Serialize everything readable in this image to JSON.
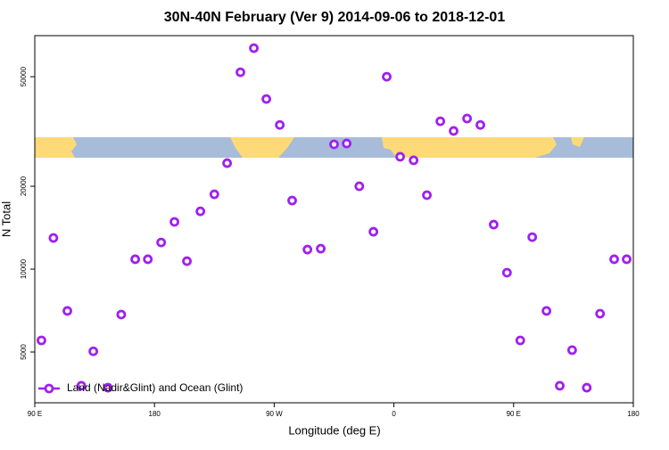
{
  "chart_data": {
    "type": "scatter",
    "title": "30N-40N February (Ver 9)   2014-09-06 to 2018-12-01",
    "x_label": "Longitude (deg E)",
    "y_label": "N Total",
    "xlim": [
      -270,
      180
    ],
    "ylim": [
      3270,
      70500
    ],
    "yscale": "log",
    "xticks": [
      {
        "value": -270,
        "label": "90 E"
      },
      {
        "value": -180,
        "label": "180"
      },
      {
        "value": -90,
        "label": "90 W"
      },
      0,
      {
        "value": 90,
        "label": "90 E"
      },
      180
    ],
    "yticks": [
      5000,
      10000,
      20000,
      50000
    ],
    "legend": "bottom-left",
    "series": [
      {
        "name": "Land (Nadir&Glint) and Ocean (Glint)",
        "color": "#a020f0",
        "x": [
          -265,
          -256,
          -245.5,
          -235,
          -226,
          -215,
          -205,
          -194.5,
          -185,
          -175,
          -165,
          -155.6,
          -145.5,
          -135,
          -125.4,
          -115.4,
          -105.3,
          -95.9,
          -85.8,
          -76.5,
          -65,
          -55,
          -45,
          -35.5,
          -26,
          -15.4,
          -5.4,
          4.7,
          14.8,
          24.8,
          34.9,
          44.9,
          55,
          65,
          75,
          85,
          95,
          104,
          114.7,
          124.7,
          134,
          145,
          155,
          165.6,
          175
        ],
        "values": [
          5510,
          12980,
          7050,
          3770,
          5030,
          3710,
          6840,
          10860,
          10860,
          12500,
          14850,
          10690,
          16220,
          18700,
          24270,
          51900,
          63500,
          41500,
          33400,
          17750,
          11780,
          11870,
          28400,
          28600,
          20000,
          13670,
          50000,
          25600,
          24850,
          18570,
          34440,
          31770,
          35250,
          33400,
          14510,
          9710,
          5510,
          13070,
          7050,
          3770,
          5080,
          3710,
          6890,
          10860,
          10860
        ]
      }
    ]
  }
}
